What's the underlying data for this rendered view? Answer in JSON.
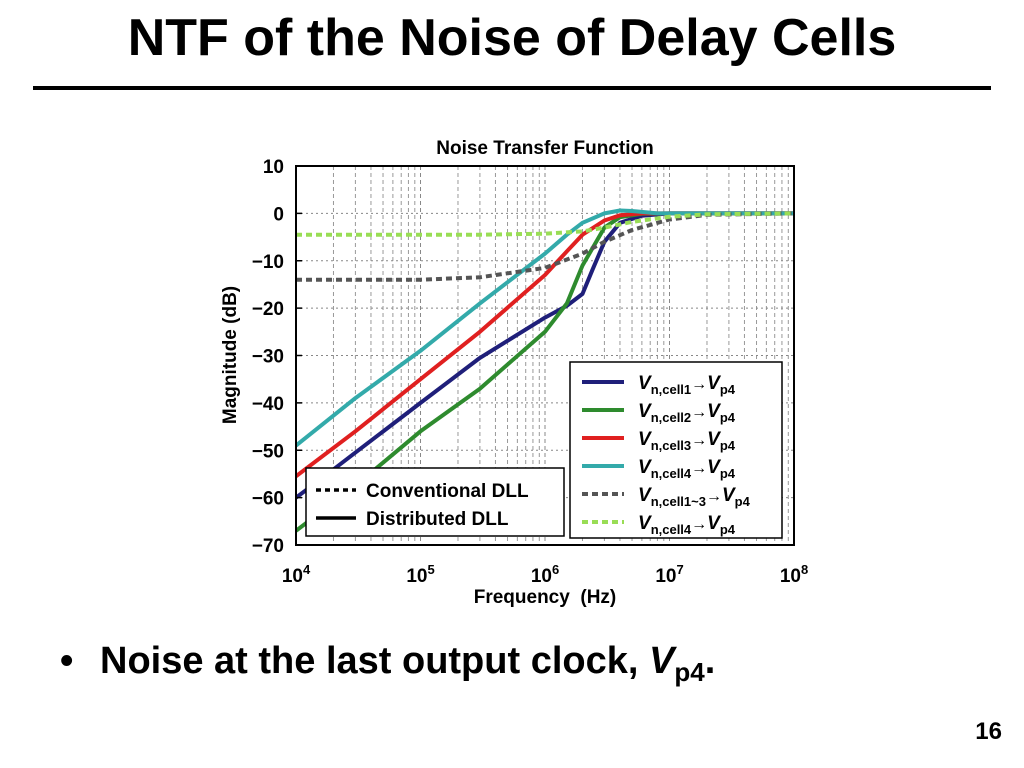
{
  "slide": {
    "title": "NTF of the Noise of Delay Cells",
    "bullet_text": "Noise at the last output clock, ",
    "bullet_var": "V",
    "bullet_sub": "p4",
    "bullet_end": ".",
    "page_number": "16"
  },
  "chart_data": {
    "type": "line",
    "title": "Noise Transfer Function",
    "xlabel": "Frequency  (Hz)",
    "ylabel": "Magnitude (dB)",
    "x_scale": "log",
    "xlim": [
      10000,
      100000000
    ],
    "ylim": [
      -70,
      10
    ],
    "x_ticks": [
      {
        "base": "10",
        "exp": "4",
        "value": 10000
      },
      {
        "base": "10",
        "exp": "5",
        "value": 100000
      },
      {
        "base": "10",
        "exp": "6",
        "value": 1000000
      },
      {
        "base": "10",
        "exp": "7",
        "value": 10000000
      },
      {
        "base": "10",
        "exp": "8",
        "value": 100000000
      }
    ],
    "y_ticks": [
      "10",
      "0",
      "−10",
      "−20",
      "−30",
      "−40",
      "−50",
      "−60",
      "−70"
    ],
    "y_tick_values": [
      10,
      0,
      -10,
      -20,
      -30,
      -40,
      -50,
      -60,
      -70
    ],
    "grid": true,
    "series": [
      {
        "key": "cell1",
        "color": "#1f1f7a",
        "dash": "solid",
        "label": {
          "v": "V",
          "sub1": "n,cell1",
          "arrow": "→",
          "v2": "V",
          "sub2": "p4"
        },
        "x": [
          10000,
          16000,
          30000,
          100000,
          300000,
          1000000,
          1500000,
          2000000,
          2400000,
          3000000,
          4000000,
          6000000,
          10000000,
          100000000
        ],
        "y": [
          -60,
          -56,
          -50.5,
          -40,
          -30.5,
          -22,
          -19.5,
          -17,
          -12,
          -6,
          -2,
          -0.5,
          0,
          0
        ]
      },
      {
        "key": "cell2",
        "color": "#2e8b2e",
        "dash": "solid",
        "label": {
          "v": "V",
          "sub1": "n,cell2",
          "arrow": "→",
          "v2": "V",
          "sub2": "p4"
        },
        "x": [
          10000,
          30000,
          100000,
          300000,
          1000000,
          1500000,
          2000000,
          3000000,
          4000000,
          6000000,
          10000000,
          100000000
        ],
        "y": [
          -67,
          -57.5,
          -46,
          -37,
          -25,
          -19,
          -11,
          -3,
          -0.8,
          -0.1,
          0,
          0
        ]
      },
      {
        "key": "cell3",
        "color": "#e02020",
        "dash": "solid",
        "label": {
          "v": "V",
          "sub1": "n,cell3",
          "arrow": "→",
          "v2": "V",
          "sub2": "p4"
        },
        "x": [
          10000,
          30000,
          100000,
          300000,
          1000000,
          1500000,
          2000000,
          3000000,
          4000000,
          6000000,
          100000000
        ],
        "y": [
          -55.5,
          -46,
          -35,
          -25,
          -13,
          -8,
          -4.5,
          -1.5,
          -0.4,
          0,
          0
        ]
      },
      {
        "key": "cell4",
        "color": "#33aaaa",
        "dash": "solid",
        "label": {
          "v": "V",
          "sub1": "n,cell4",
          "arrow": "→",
          "v2": "V",
          "sub2": "p4"
        },
        "x": [
          10000,
          30000,
          100000,
          300000,
          1000000,
          1500000,
          2000000,
          3000000,
          4000000,
          5000000,
          8000000,
          100000000
        ],
        "y": [
          -49,
          -39,
          -29,
          -19,
          -8.5,
          -4.5,
          -2,
          0,
          0.6,
          0.5,
          0,
          0
        ]
      },
      {
        "key": "conv13",
        "color": "#555555",
        "dash": "dashed",
        "label": {
          "v": "V",
          "sub1": "n,cell1~3",
          "arrow": "→",
          "v2": "V",
          "sub2": "p4"
        },
        "x": [
          10000,
          100000,
          300000,
          1000000,
          2000000,
          3000000,
          5000000,
          10000000,
          20000000,
          100000000
        ],
        "y": [
          -14,
          -14,
          -13.5,
          -11.5,
          -8.5,
          -6,
          -3.5,
          -1.3,
          -0.3,
          0
        ]
      },
      {
        "key": "conv4",
        "color": "#99dd55",
        "dash": "dashed",
        "label": {
          "v": "V",
          "sub1": "n,cell4",
          "arrow": "→",
          "v2": "V",
          "sub2": "p4"
        },
        "x": [
          10000,
          300000,
          1000000,
          2000000,
          3000000,
          5000000,
          10000000,
          20000000,
          100000000
        ],
        "y": [
          -4.5,
          -4.5,
          -4.3,
          -3.8,
          -3,
          -1.8,
          -0.7,
          -0.2,
          0
        ]
      }
    ],
    "legend_series_placement": "lower-right",
    "legend_style": {
      "placement": "lower-left",
      "entries": [
        {
          "text": "Conventional DLL",
          "dash": "dashed"
        },
        {
          "text": "Distributed DLL",
          "dash": "solid"
        }
      ]
    }
  }
}
